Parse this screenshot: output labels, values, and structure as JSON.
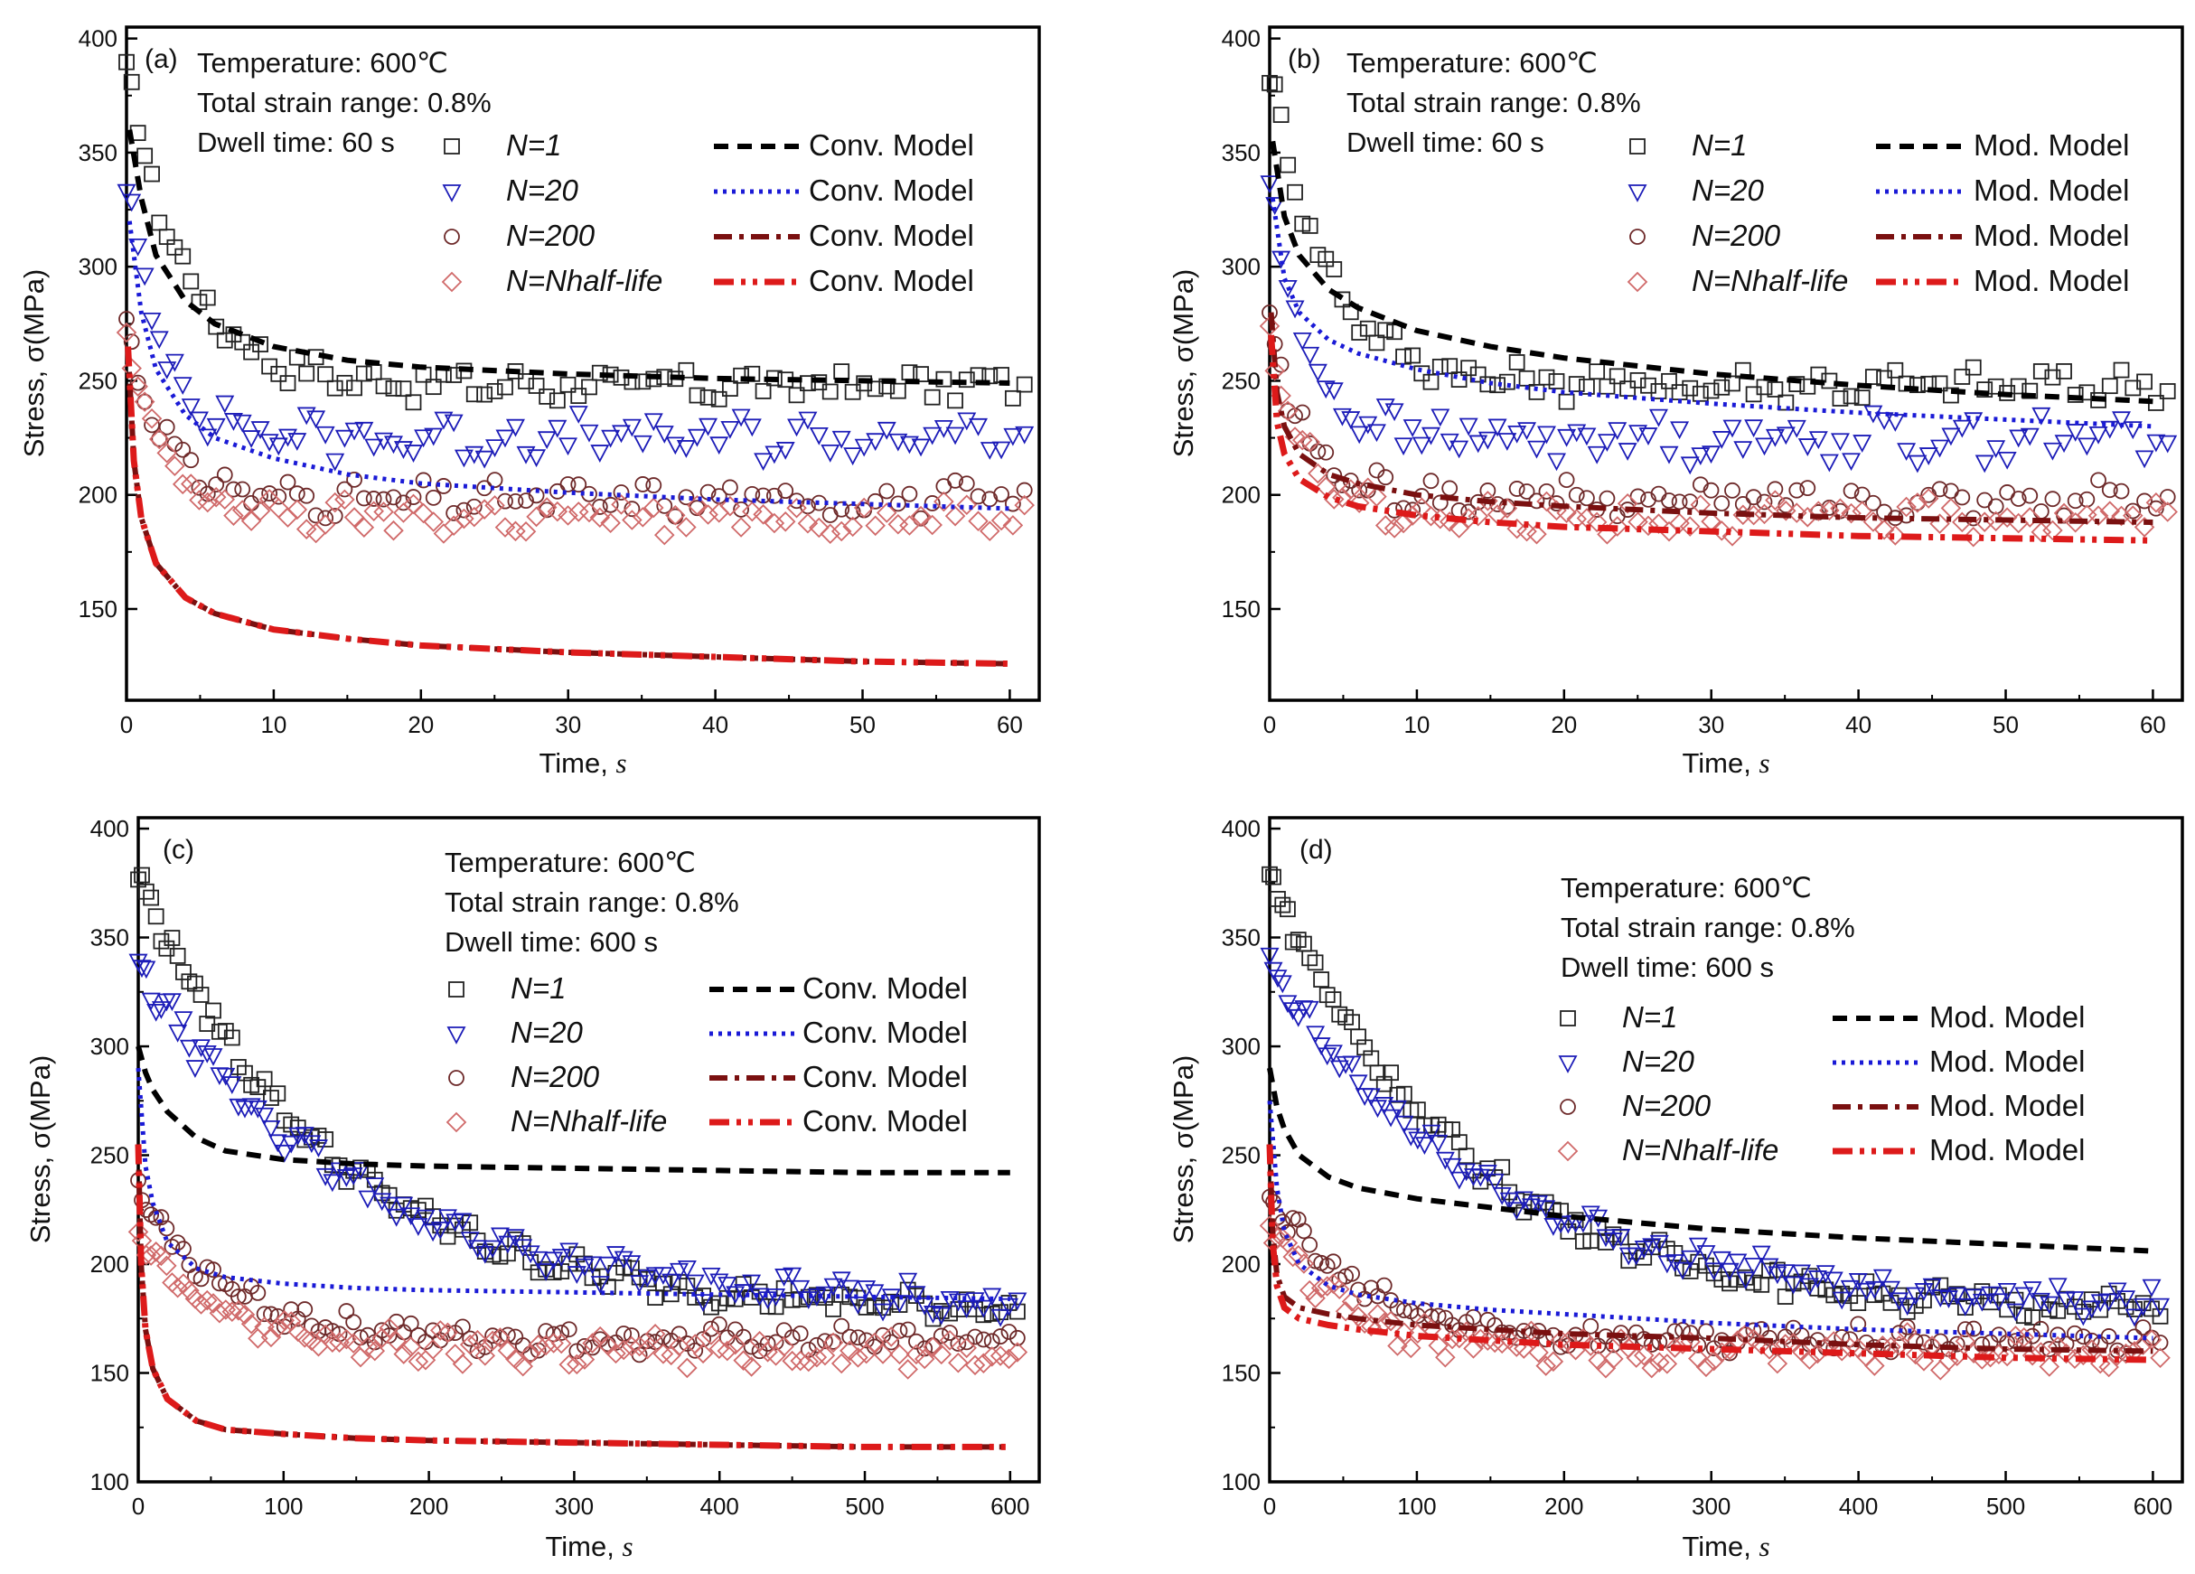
{
  "colors": {
    "N1": "#222222",
    "N20": "#1c1cb8",
    "N200": "#6e2a2a",
    "Nhalf": "#d06a6a",
    "model_N1": "#000000",
    "model_N20": "#1a1ad6",
    "model_N200": "#7a1010",
    "model_Nhalf": "#dd1a1a"
  },
  "chart_data": [
    {
      "panel": "(a)",
      "type": "scatter",
      "notes": [
        "Temperature: 600℃",
        "Total strain range: 0.8%",
        "Dwell time: 60 s"
      ],
      "xlabel": "Time, ",
      "xlabel_unit": "s",
      "ylabel": "Stress, σ(MPa)",
      "xlim": [
        0,
        62
      ],
      "ylim": [
        110,
        405
      ],
      "xticks": [
        0,
        10,
        20,
        30,
        40,
        50,
        60
      ],
      "yticks": [
        150,
        200,
        250,
        300,
        350,
        400
      ],
      "legend": [
        {
          "marker": "square",
          "label": "N=1",
          "model": "Conv. Model",
          "dash": "dash",
          "ckey": "N1",
          "mkey": "model_N1"
        },
        {
          "marker": "triangle",
          "label": "N=20",
          "model": "Conv. Model",
          "dash": "dot",
          "ckey": "N20",
          "mkey": "model_N20"
        },
        {
          "marker": "circle",
          "label": "N=200",
          "model": "Conv. Model",
          "dash": "dashdot",
          "ckey": "N200",
          "mkey": "model_N200"
        },
        {
          "marker": "diamond",
          "label": "N=Nhalf-life",
          "model": "Conv. Model",
          "dash": "dashdotdot",
          "ckey": "Nhalf",
          "mkey": "model_Nhalf"
        }
      ],
      "exp": [
        {
          "key": "N1",
          "marker": "square",
          "x0": 0,
          "x1": 61,
          "n": 90,
          "a": 385,
          "b": 248,
          "tau": 4,
          "noise": 6
        },
        {
          "key": "N20",
          "marker": "triangle",
          "x0": 0,
          "x1": 61,
          "n": 90,
          "a": 335,
          "b": 225,
          "tau": 2.5,
          "noise": 8
        },
        {
          "key": "N200",
          "marker": "circle",
          "x0": 0,
          "x1": 61,
          "n": 90,
          "a": 275,
          "b": 198,
          "tau": 2.5,
          "noise": 6
        },
        {
          "key": "Nhalf",
          "marker": "diamond",
          "x0": 0,
          "x1": 61,
          "n": 90,
          "a": 268,
          "b": 190,
          "tau": 2.5,
          "noise": 6
        }
      ],
      "model": [
        {
          "key": "model_N1",
          "dash": "dash",
          "x": [
            0.2,
            1,
            2,
            4,
            6,
            10,
            15,
            20,
            30,
            40,
            50,
            60
          ],
          "y": [
            360,
            330,
            305,
            285,
            275,
            265,
            259,
            256,
            253,
            251,
            250,
            249
          ]
        },
        {
          "key": "model_N20",
          "dash": "dot",
          "x": [
            0.2,
            1,
            2,
            4,
            6,
            10,
            15,
            20,
            30,
            40,
            50,
            60
          ],
          "y": [
            320,
            280,
            255,
            235,
            225,
            216,
            209,
            205,
            201,
            198,
            196,
            194
          ]
        },
        {
          "key": "model_N200",
          "dash": "dashdot",
          "x": [
            0.1,
            0.5,
            1,
            2,
            4,
            6,
            10,
            15,
            20,
            30,
            40,
            50,
            60
          ],
          "y": [
            265,
            215,
            190,
            170,
            155,
            148,
            141,
            137,
            134,
            131,
            129,
            127,
            126
          ]
        },
        {
          "key": "model_Nhalf",
          "dash": "dashdotdot",
          "x": [
            0.1,
            0.5,
            1,
            2,
            4,
            6,
            10,
            15,
            20,
            30,
            40,
            50,
            60
          ],
          "y": [
            265,
            215,
            190,
            170,
            155,
            148,
            141,
            137,
            134,
            131,
            129,
            127,
            126
          ]
        }
      ]
    },
    {
      "panel": "(b)",
      "type": "scatter",
      "notes": [
        "Temperature: 600℃",
        "Total strain range: 0.8%",
        "Dwell time: 60 s"
      ],
      "xlabel": "Time, ",
      "xlabel_unit": "s",
      "ylabel": "Stress, σ(MPa)",
      "xlim": [
        0,
        62
      ],
      "ylim": [
        110,
        405
      ],
      "xticks": [
        0,
        10,
        20,
        30,
        40,
        50,
        60
      ],
      "yticks": [
        150,
        200,
        250,
        300,
        350,
        400
      ],
      "legend": [
        {
          "marker": "square",
          "label": "N=1",
          "model": "Mod. Model",
          "dash": "dash",
          "ckey": "N1",
          "mkey": "model_N1"
        },
        {
          "marker": "triangle",
          "label": "N=20",
          "model": "Mod. Model",
          "dash": "dot",
          "ckey": "N20",
          "mkey": "model_N20"
        },
        {
          "marker": "circle",
          "label": "N=200",
          "model": "Mod. Model",
          "dash": "dashdot",
          "ckey": "N200",
          "mkey": "model_N200"
        },
        {
          "marker": "diamond",
          "label": "N=Nhalf-life",
          "model": "Mod. Model",
          "dash": "dashdotdot",
          "ckey": "Nhalf",
          "mkey": "model_Nhalf"
        }
      ],
      "exp": [
        {
          "key": "N1",
          "marker": "square",
          "x0": 0,
          "x1": 61,
          "n": 90,
          "a": 385,
          "b": 248,
          "tau": 4,
          "noise": 6
        },
        {
          "key": "N20",
          "marker": "triangle",
          "x0": 0,
          "x1": 61,
          "n": 90,
          "a": 335,
          "b": 225,
          "tau": 2.5,
          "noise": 8
        },
        {
          "key": "N200",
          "marker": "circle",
          "x0": 0,
          "x1": 61,
          "n": 90,
          "a": 275,
          "b": 198,
          "tau": 2.5,
          "noise": 6
        },
        {
          "key": "Nhalf",
          "marker": "diamond",
          "x0": 0,
          "x1": 61,
          "n": 90,
          "a": 268,
          "b": 190,
          "tau": 2.5,
          "noise": 6
        }
      ],
      "model": [
        {
          "key": "model_N1",
          "dash": "dash",
          "x": [
            0.2,
            1,
            2,
            4,
            6,
            10,
            15,
            20,
            30,
            40,
            50,
            60
          ],
          "y": [
            355,
            322,
            305,
            290,
            282,
            272,
            265,
            260,
            253,
            248,
            244,
            241
          ]
        },
        {
          "key": "model_N20",
          "dash": "dot",
          "x": [
            0.2,
            1,
            2,
            4,
            6,
            10,
            15,
            20,
            30,
            40,
            50,
            60
          ],
          "y": [
            330,
            295,
            280,
            268,
            262,
            255,
            249,
            245,
            240,
            236,
            233,
            230
          ]
        },
        {
          "key": "model_N200",
          "dash": "dashdot",
          "x": [
            0.1,
            0.5,
            1,
            2,
            4,
            6,
            10,
            15,
            20,
            30,
            40,
            50,
            60
          ],
          "y": [
            280,
            245,
            230,
            218,
            209,
            205,
            200,
            197,
            195,
            192,
            190,
            189,
            188
          ]
        },
        {
          "key": "model_Nhalf",
          "dash": "dashdotdot",
          "x": [
            0.1,
            0.5,
            1,
            2,
            4,
            6,
            10,
            15,
            20,
            30,
            40,
            50,
            60
          ],
          "y": [
            270,
            232,
            218,
            207,
            199,
            195,
            191,
            188,
            186,
            184,
            182,
            181,
            180
          ]
        }
      ]
    },
    {
      "panel": "(c)",
      "type": "scatter",
      "notes": [
        "Temperature: 600℃",
        "Total strain range: 0.8%",
        "Dwell time: 600 s"
      ],
      "xlabel": "Time, ",
      "xlabel_unit": "s",
      "ylabel": "Stress, σ(MPa)",
      "xlim": [
        0,
        620
      ],
      "ylim": [
        100,
        405
      ],
      "xticks": [
        0,
        100,
        200,
        300,
        400,
        500,
        600
      ],
      "yticks": [
        100,
        150,
        200,
        250,
        300,
        350,
        400
      ],
      "legend": [
        {
          "marker": "square",
          "label": "N=1",
          "model": "Conv. Model",
          "dash": "dash",
          "ckey": "N1",
          "mkey": "model_N1"
        },
        {
          "marker": "triangle",
          "label": "N=20",
          "model": "Conv. Model",
          "dash": "dot",
          "ckey": "N20",
          "mkey": "model_N20"
        },
        {
          "marker": "circle",
          "label": "N=200",
          "model": "Conv. Model",
          "dash": "dashdot",
          "ckey": "N200",
          "mkey": "model_N200"
        },
        {
          "marker": "diamond",
          "label": "N=Nhalf-life",
          "model": "Conv. Model",
          "dash": "dashdotdot",
          "ckey": "Nhalf",
          "mkey": "model_Nhalf"
        }
      ],
      "exp": [
        {
          "key": "N1",
          "marker": "square",
          "x0": 0,
          "x1": 605,
          "n": 120,
          "a": 378,
          "b": 178,
          "tau": 130,
          "noise": 5
        },
        {
          "key": "N20",
          "marker": "triangle",
          "x0": 0,
          "x1": 605,
          "n": 120,
          "a": 335,
          "b": 180,
          "tau": 150,
          "noise": 6
        },
        {
          "key": "N200",
          "marker": "circle",
          "x0": 0,
          "x1": 605,
          "n": 120,
          "a": 232,
          "b": 165,
          "tau": 60,
          "noise": 5
        },
        {
          "key": "Nhalf",
          "marker": "diamond",
          "x0": 0,
          "x1": 605,
          "n": 120,
          "a": 218,
          "b": 160,
          "tau": 50,
          "noise": 6
        }
      ],
      "model": [
        {
          "key": "model_N1",
          "dash": "dash",
          "x": [
            0,
            5,
            10,
            20,
            40,
            60,
            100,
            150,
            200,
            300,
            400,
            500,
            600
          ],
          "y": [
            300,
            288,
            280,
            270,
            258,
            252,
            248,
            246,
            245,
            244,
            243,
            242,
            242
          ]
        },
        {
          "key": "model_N20",
          "dash": "dot",
          "x": [
            0,
            5,
            10,
            20,
            40,
            60,
            100,
            150,
            200,
            300,
            400,
            500,
            600
          ],
          "y": [
            290,
            245,
            228,
            210,
            198,
            194,
            191,
            189,
            188,
            187,
            186,
            185,
            184
          ]
        },
        {
          "key": "model_N200",
          "dash": "dashdot",
          "x": [
            0,
            2,
            5,
            10,
            20,
            40,
            60,
            100,
            150,
            200,
            300,
            400,
            500,
            600
          ],
          "y": [
            255,
            200,
            170,
            152,
            138,
            128,
            124,
            122,
            120,
            119,
            118,
            117,
            116,
            116
          ]
        },
        {
          "key": "model_Nhalf",
          "dash": "dashdotdot",
          "x": [
            0,
            2,
            5,
            10,
            20,
            40,
            60,
            100,
            150,
            200,
            300,
            400,
            500,
            600
          ],
          "y": [
            255,
            200,
            170,
            152,
            138,
            128,
            124,
            122,
            120,
            119,
            118,
            117,
            116,
            116
          ]
        }
      ]
    },
    {
      "panel": "(d)",
      "type": "scatter",
      "notes": [
        "Temperature: 600℃",
        "Total strain range: 0.8%",
        "Dwell time: 600 s"
      ],
      "xlabel": "Time, ",
      "xlabel_unit": "s",
      "ylabel": "Stress, σ(MPa)",
      "xlim": [
        0,
        620
      ],
      "ylim": [
        100,
        405
      ],
      "xticks": [
        0,
        100,
        200,
        300,
        400,
        500,
        600
      ],
      "yticks": [
        100,
        150,
        200,
        250,
        300,
        350,
        400
      ],
      "legend": [
        {
          "marker": "square",
          "label": "N=1",
          "model": "Mod. Model",
          "dash": "dash",
          "ckey": "N1",
          "mkey": "model_N1"
        },
        {
          "marker": "triangle",
          "label": "N=20",
          "model": "Mod. Model",
          "dash": "dot",
          "ckey": "N20",
          "mkey": "model_N20"
        },
        {
          "marker": "circle",
          "label": "N=200",
          "model": "Mod. Model",
          "dash": "dashdot",
          "ckey": "N200",
          "mkey": "model_N200"
        },
        {
          "marker": "diamond",
          "label": "N=Nhalf-life",
          "model": "Mod. Model",
          "dash": "dashdotdot",
          "ckey": "Nhalf",
          "mkey": "model_Nhalf"
        }
      ],
      "exp": [
        {
          "key": "N1",
          "marker": "square",
          "x0": 0,
          "x1": 605,
          "n": 120,
          "a": 378,
          "b": 178,
          "tau": 130,
          "noise": 5
        },
        {
          "key": "N20",
          "marker": "triangle",
          "x0": 0,
          "x1": 605,
          "n": 120,
          "a": 335,
          "b": 180,
          "tau": 150,
          "noise": 6
        },
        {
          "key": "N200",
          "marker": "circle",
          "x0": 0,
          "x1": 605,
          "n": 120,
          "a": 232,
          "b": 165,
          "tau": 60,
          "noise": 5
        },
        {
          "key": "Nhalf",
          "marker": "diamond",
          "x0": 0,
          "x1": 605,
          "n": 120,
          "a": 218,
          "b": 160,
          "tau": 50,
          "noise": 6
        }
      ],
      "model": [
        {
          "key": "model_N1",
          "dash": "dash",
          "x": [
            0,
            5,
            10,
            20,
            40,
            60,
            100,
            150,
            200,
            300,
            400,
            500,
            600
          ],
          "y": [
            290,
            272,
            262,
            250,
            240,
            235,
            230,
            226,
            222,
            216,
            212,
            209,
            206
          ]
        },
        {
          "key": "model_N20",
          "dash": "dot",
          "x": [
            0,
            5,
            10,
            20,
            40,
            60,
            100,
            150,
            200,
            300,
            400,
            500,
            600
          ],
          "y": [
            275,
            235,
            215,
            200,
            190,
            186,
            182,
            179,
            177,
            173,
            170,
            168,
            166
          ]
        },
        {
          "key": "model_N200",
          "dash": "dashdot",
          "x": [
            0,
            2,
            5,
            10,
            20,
            40,
            60,
            100,
            150,
            200,
            300,
            400,
            500,
            600
          ],
          "y": [
            255,
            215,
            195,
            185,
            180,
            177,
            175,
            172,
            170,
            168,
            166,
            163,
            161,
            160
          ]
        },
        {
          "key": "model_Nhalf",
          "dash": "dashdotdot",
          "x": [
            0,
            2,
            5,
            10,
            20,
            40,
            60,
            100,
            150,
            200,
            300,
            400,
            500,
            600
          ],
          "y": [
            255,
            210,
            190,
            180,
            175,
            172,
            170,
            167,
            165,
            163,
            161,
            159,
            157,
            156
          ]
        }
      ]
    }
  ]
}
